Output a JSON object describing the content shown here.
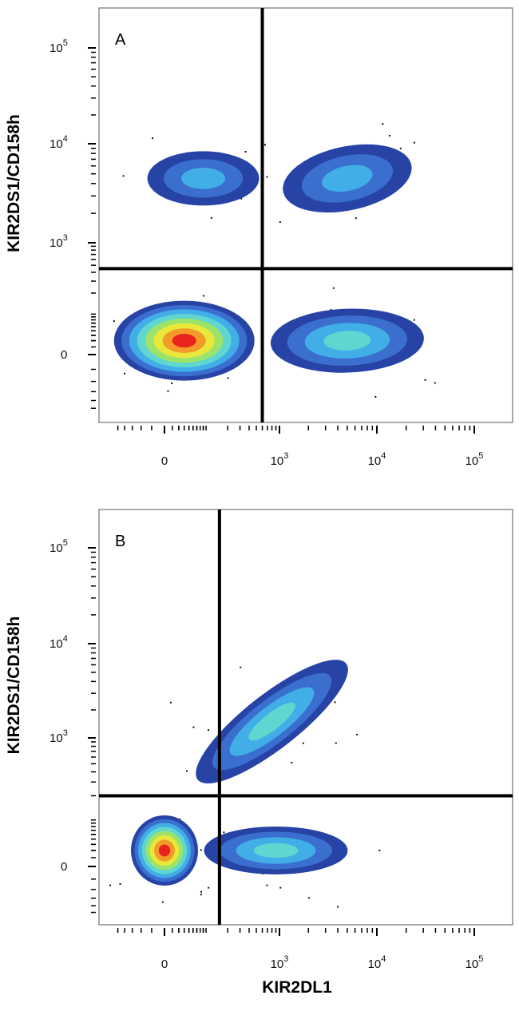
{
  "chart_data": [
    {
      "type": "scatter",
      "panel_label": "A",
      "xlabel": "",
      "ylabel": "KIR2DS1/CD158h",
      "x_scale": "biexponential",
      "y_scale": "biexponential",
      "xlim": [
        -60,
        250000
      ],
      "ylim": [
        -60,
        250000
      ],
      "x_ticks": [
        {
          "value": 0,
          "base": "0",
          "exp": ""
        },
        {
          "value": 1000,
          "base": "10",
          "exp": "3"
        },
        {
          "value": 10000,
          "base": "10",
          "exp": "4"
        },
        {
          "value": 100000,
          "base": "10",
          "exp": "5"
        }
      ],
      "y_ticks": [
        {
          "value": 0,
          "base": "0",
          "exp": ""
        },
        {
          "value": 1000,
          "base": "10",
          "exp": "3"
        },
        {
          "value": 10000,
          "base": "10",
          "exp": "4"
        },
        {
          "value": 100000,
          "base": "10",
          "exp": "5"
        }
      ],
      "gates": {
        "x": 600,
        "y": 450
      },
      "populations": [
        {
          "name": "double-negative",
          "x": 30,
          "y": 20,
          "peak_density": "high"
        },
        {
          "name": "KIR2DL1+ single",
          "x": 5000,
          "y": 20,
          "peak_density": "medium"
        },
        {
          "name": "KIR2DS1+ single",
          "x": 80,
          "y": 4500,
          "peak_density": "low"
        },
        {
          "name": "double-positive",
          "x": 5000,
          "y": 4500,
          "peak_density": "low"
        }
      ],
      "density_colors": [
        "#2743a6",
        "#3a6fd0",
        "#41aee8",
        "#5fd6d0",
        "#9be36a",
        "#e8e83a",
        "#f29a2a",
        "#e8231c"
      ]
    },
    {
      "type": "scatter",
      "panel_label": "B",
      "xlabel": "KIR2DL1",
      "ylabel": "KIR2DS1/CD158h",
      "x_scale": "biexponential",
      "y_scale": "biexponential",
      "xlim": [
        -60,
        250000
      ],
      "ylim": [
        -60,
        250000
      ],
      "x_ticks": [
        {
          "value": 0,
          "base": "0",
          "exp": ""
        },
        {
          "value": 1000,
          "base": "10",
          "exp": "3"
        },
        {
          "value": 10000,
          "base": "10",
          "exp": "4"
        },
        {
          "value": 100000,
          "base": "10",
          "exp": "5"
        }
      ],
      "y_ticks": [
        {
          "value": 0,
          "base": "0",
          "exp": ""
        },
        {
          "value": 1000,
          "base": "10",
          "exp": "3"
        },
        {
          "value": 10000,
          "base": "10",
          "exp": "4"
        },
        {
          "value": 100000,
          "base": "10",
          "exp": "5"
        }
      ],
      "gates": {
        "x": 150,
        "y": 200
      },
      "populations": [
        {
          "name": "double-negative",
          "x": 0,
          "y": 20,
          "peak_density": "high"
        },
        {
          "name": "KIR2DL1+ single",
          "x": 900,
          "y": 20,
          "peak_density": "medium"
        },
        {
          "name": "double-positive",
          "x": 800,
          "y": 1500,
          "peak_density": "medium"
        }
      ],
      "density_colors": [
        "#2743a6",
        "#3a6fd0",
        "#41aee8",
        "#5fd6d0",
        "#9be36a",
        "#e8e83a",
        "#f29a2a",
        "#e8231c"
      ]
    }
  ]
}
